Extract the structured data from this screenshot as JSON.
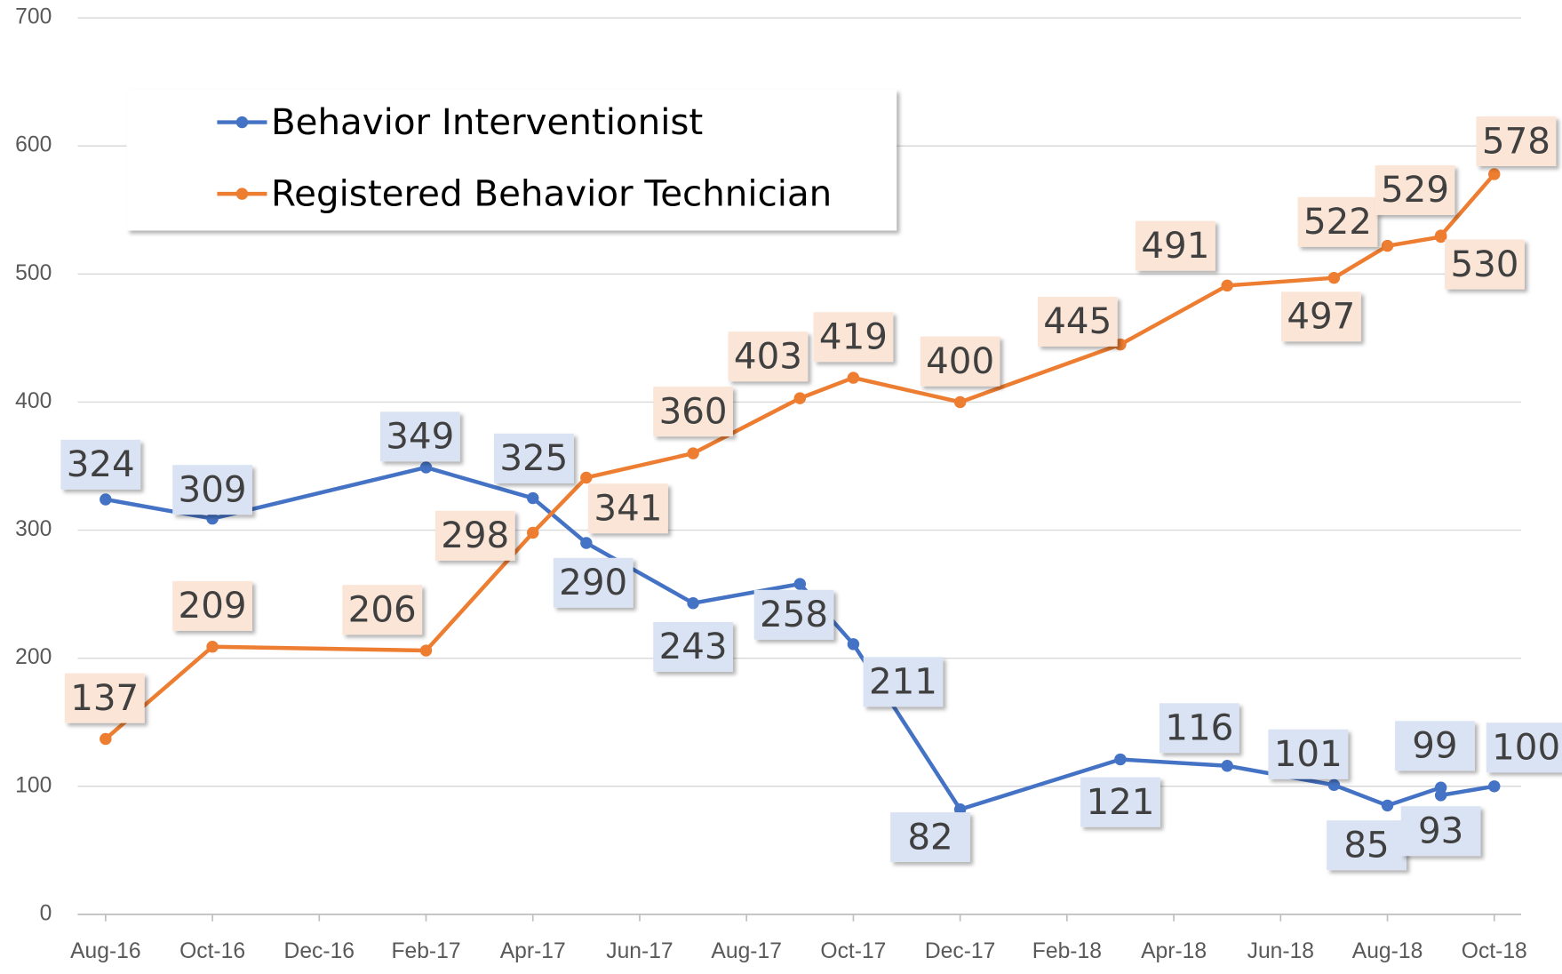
{
  "chart_data": {
    "type": "line",
    "x": [
      "2016-08",
      "2016-10",
      "2017-02",
      "2017-04",
      "2017-05",
      "2017-07",
      "2017-09",
      "2017-10",
      "2017-12",
      "2018-03",
      "2018-05",
      "2018-07",
      "2018-08",
      "2018-09",
      "2018-09",
      "2018-10"
    ],
    "series": [
      {
        "name": "Behavior Interventionist",
        "color": "#4472c4",
        "values": [
          324,
          309,
          349,
          325,
          290,
          243,
          258,
          211,
          82,
          121,
          116,
          101,
          85,
          99,
          93,
          100
        ]
      },
      {
        "name": "Registered Behavior Technician",
        "color": "#ed7d31",
        "values": [
          137,
          209,
          206,
          298,
          341,
          360,
          403,
          419,
          400,
          445,
          491,
          497,
          522,
          529,
          530,
          578
        ]
      }
    ],
    "xlim": [
      "2016-08",
      "2018-10"
    ],
    "xticks": [
      {
        "value": "2016-08",
        "label": "Aug-16"
      },
      {
        "value": "2016-10",
        "label": "Oct-16"
      },
      {
        "value": "2016-12",
        "label": "Dec-16"
      },
      {
        "value": "2017-02",
        "label": "Feb-17"
      },
      {
        "value": "2017-04",
        "label": "Apr-17"
      },
      {
        "value": "2017-06",
        "label": "Jun-17"
      },
      {
        "value": "2017-08",
        "label": "Aug-17"
      },
      {
        "value": "2017-10",
        "label": "Oct-17"
      },
      {
        "value": "2017-12",
        "label": "Dec-17"
      },
      {
        "value": "2018-02",
        "label": "Feb-18"
      },
      {
        "value": "2018-04",
        "label": "Apr-18"
      },
      {
        "value": "2018-06",
        "label": "Jun-18"
      },
      {
        "value": "2018-08",
        "label": "Aug-18"
      },
      {
        "value": "2018-10",
        "label": "Oct-18"
      }
    ],
    "ylim": [
      0,
      700
    ],
    "yticks": [
      0,
      100,
      200,
      300,
      400,
      500,
      600,
      700
    ],
    "grid": true,
    "legend": "upper left"
  }
}
